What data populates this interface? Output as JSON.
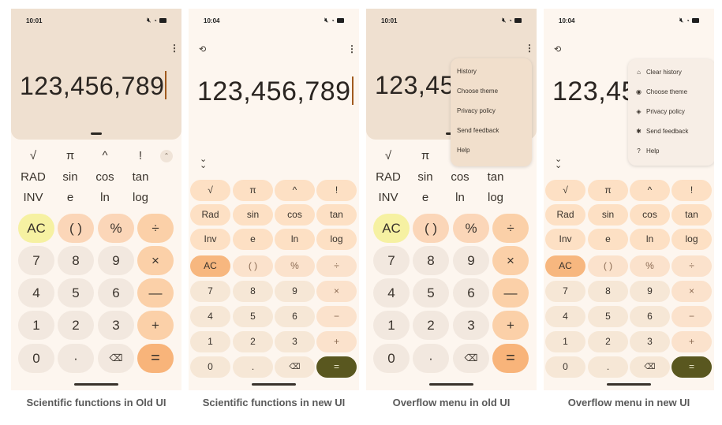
{
  "status": {
    "time_old": "10:01",
    "time_new": "10:04",
    "icons": [
      "mute-icon",
      "wifi-icon",
      "battery-icon"
    ]
  },
  "display": {
    "value": "123,456,789",
    "value_truncated": "123,45"
  },
  "scientific_old": {
    "row1": [
      "√",
      "π",
      "^",
      "!"
    ],
    "row2": [
      "RAD",
      "sin",
      "cos",
      "tan"
    ],
    "row3": [
      "INV",
      "e",
      "ln",
      "log"
    ]
  },
  "keypad_old": {
    "row1": [
      "AC",
      "( )",
      "%",
      "÷"
    ],
    "row2": [
      "7",
      "8",
      "9",
      "×"
    ],
    "row3": [
      "4",
      "5",
      "6",
      "—"
    ],
    "row4": [
      "1",
      "2",
      "3",
      "+"
    ],
    "row5": [
      "0",
      "·",
      "⌫",
      "="
    ]
  },
  "keypad_new": {
    "row1": [
      "√",
      "π",
      "^",
      "!"
    ],
    "row2": [
      "Rad",
      "sin",
      "cos",
      "tan"
    ],
    "row3": [
      "Inv",
      "e",
      "ln",
      "log"
    ],
    "row4": [
      "AC",
      "( )",
      "%",
      "÷"
    ],
    "row5": [
      "7",
      "8",
      "9",
      "×"
    ],
    "row6": [
      "4",
      "5",
      "6",
      "−"
    ],
    "row7": [
      "1",
      "2",
      "3",
      "+"
    ],
    "row8": [
      "0",
      ".",
      "⌫",
      "="
    ]
  },
  "menu_old": [
    "History",
    "Choose theme",
    "Privacy policy",
    "Send feedback",
    "Help"
  ],
  "menu_new": [
    "Clear history",
    "Choose theme",
    "Privacy policy",
    "Send feedback",
    "Help"
  ],
  "captions": [
    "Scientific functions in Old UI",
    "Scientific functions in new UI",
    "Overflow menu in old UI",
    "Overflow menu in new UI"
  ],
  "colors": {
    "equals_old": "#f8b47a",
    "equals_new": "#59571f",
    "ac_old": "#f6f1a2",
    "ac_new": "#f7b77f"
  }
}
